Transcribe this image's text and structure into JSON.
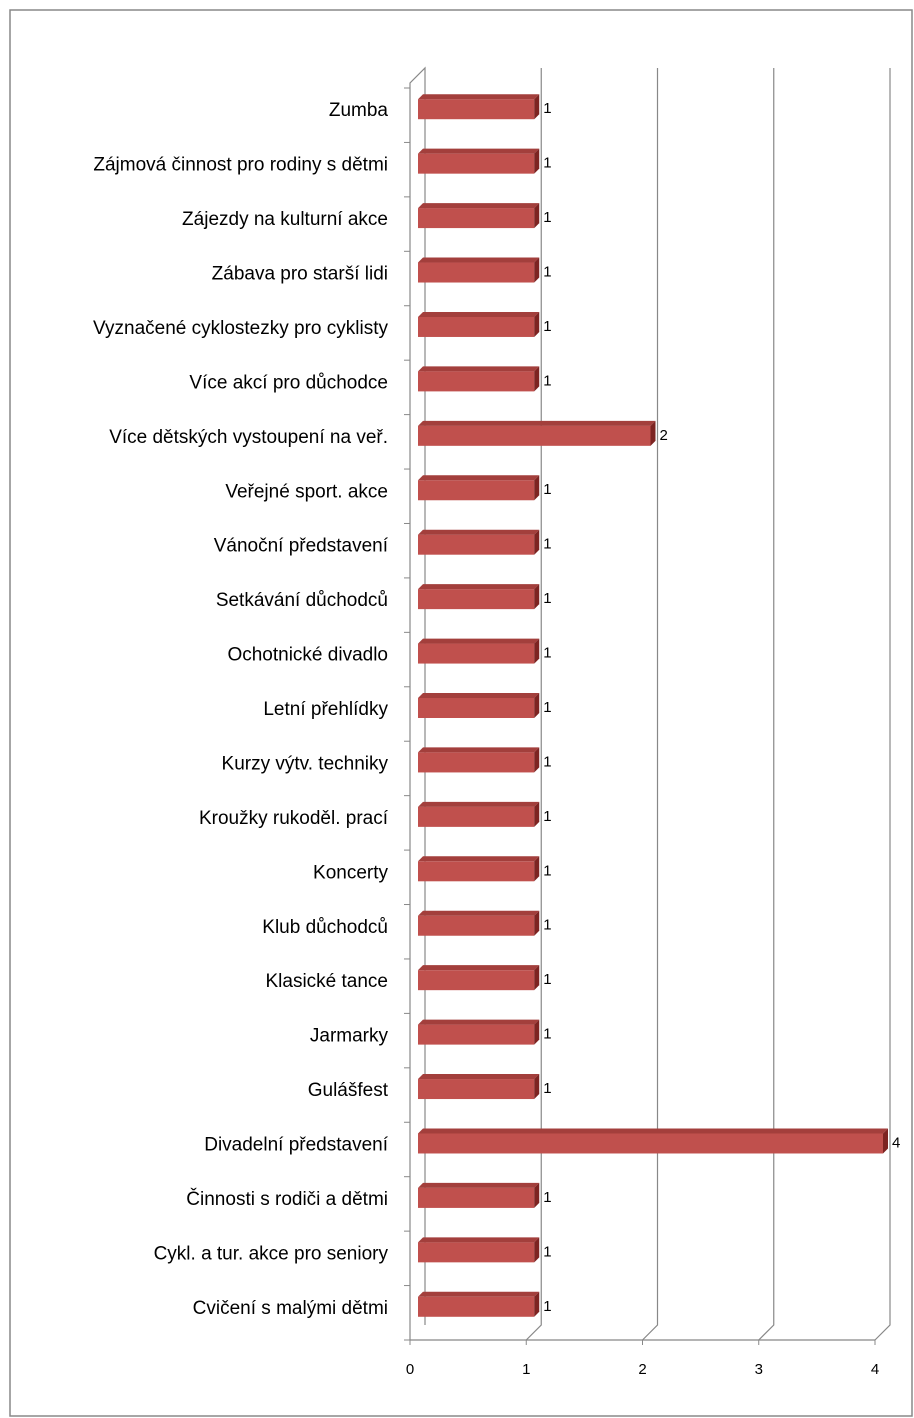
{
  "chart_data": {
    "type": "bar",
    "orientation": "horizontal",
    "color": "#c0504d",
    "categories": [
      "Zumba",
      "Zájmová činnost pro rodiny s dětmi",
      "Zájezdy na kulturní akce",
      "Zábava pro starší lidi",
      "Vyznačené cyklostezky pro cyklisty",
      "Více akcí pro důchodce",
      "Více dětských vystoupení na veř.",
      "Veřejné sport. akce",
      "Vánoční představení",
      "Setkávání důchodců",
      "Ochotnické divadlo",
      "Letní přehlídky",
      "Kurzy výtv. techniky",
      "Kroužky rukoděl. prací",
      "Koncerty",
      "Klub důchodců",
      "Klasické tance",
      "Jarmarky",
      "Gulášfest",
      "Divadelní představení",
      "Činnosti s rodiči a dětmi",
      "Cykl. a tur. akce pro seniory",
      "Cvičení s malými dětmi"
    ],
    "values": [
      1,
      1,
      1,
      1,
      1,
      1,
      2,
      1,
      1,
      1,
      1,
      1,
      1,
      1,
      1,
      1,
      1,
      1,
      1,
      4,
      1,
      1,
      1
    ],
    "xlim": [
      0,
      4
    ],
    "xticks": [
      0,
      1,
      2,
      3,
      4
    ],
    "grid": true
  }
}
